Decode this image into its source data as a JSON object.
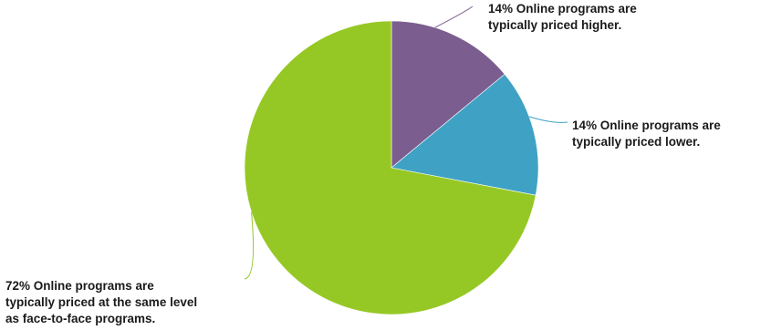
{
  "chart_data": {
    "type": "pie",
    "slices": [
      {
        "value": 14,
        "color": "#7b5e8f",
        "label_lines": [
          "14% Online programs are",
          "typically priced higher."
        ]
      },
      {
        "value": 14,
        "color": "#3fa2c4",
        "label_lines": [
          "14% Online programs are",
          "typically priced lower."
        ]
      },
      {
        "value": 72,
        "color": "#96c825",
        "label_lines": [
          "72% Online programs are",
          "typically priced at the same level",
          "as face-to-face programs."
        ]
      }
    ],
    "legend": "none"
  }
}
